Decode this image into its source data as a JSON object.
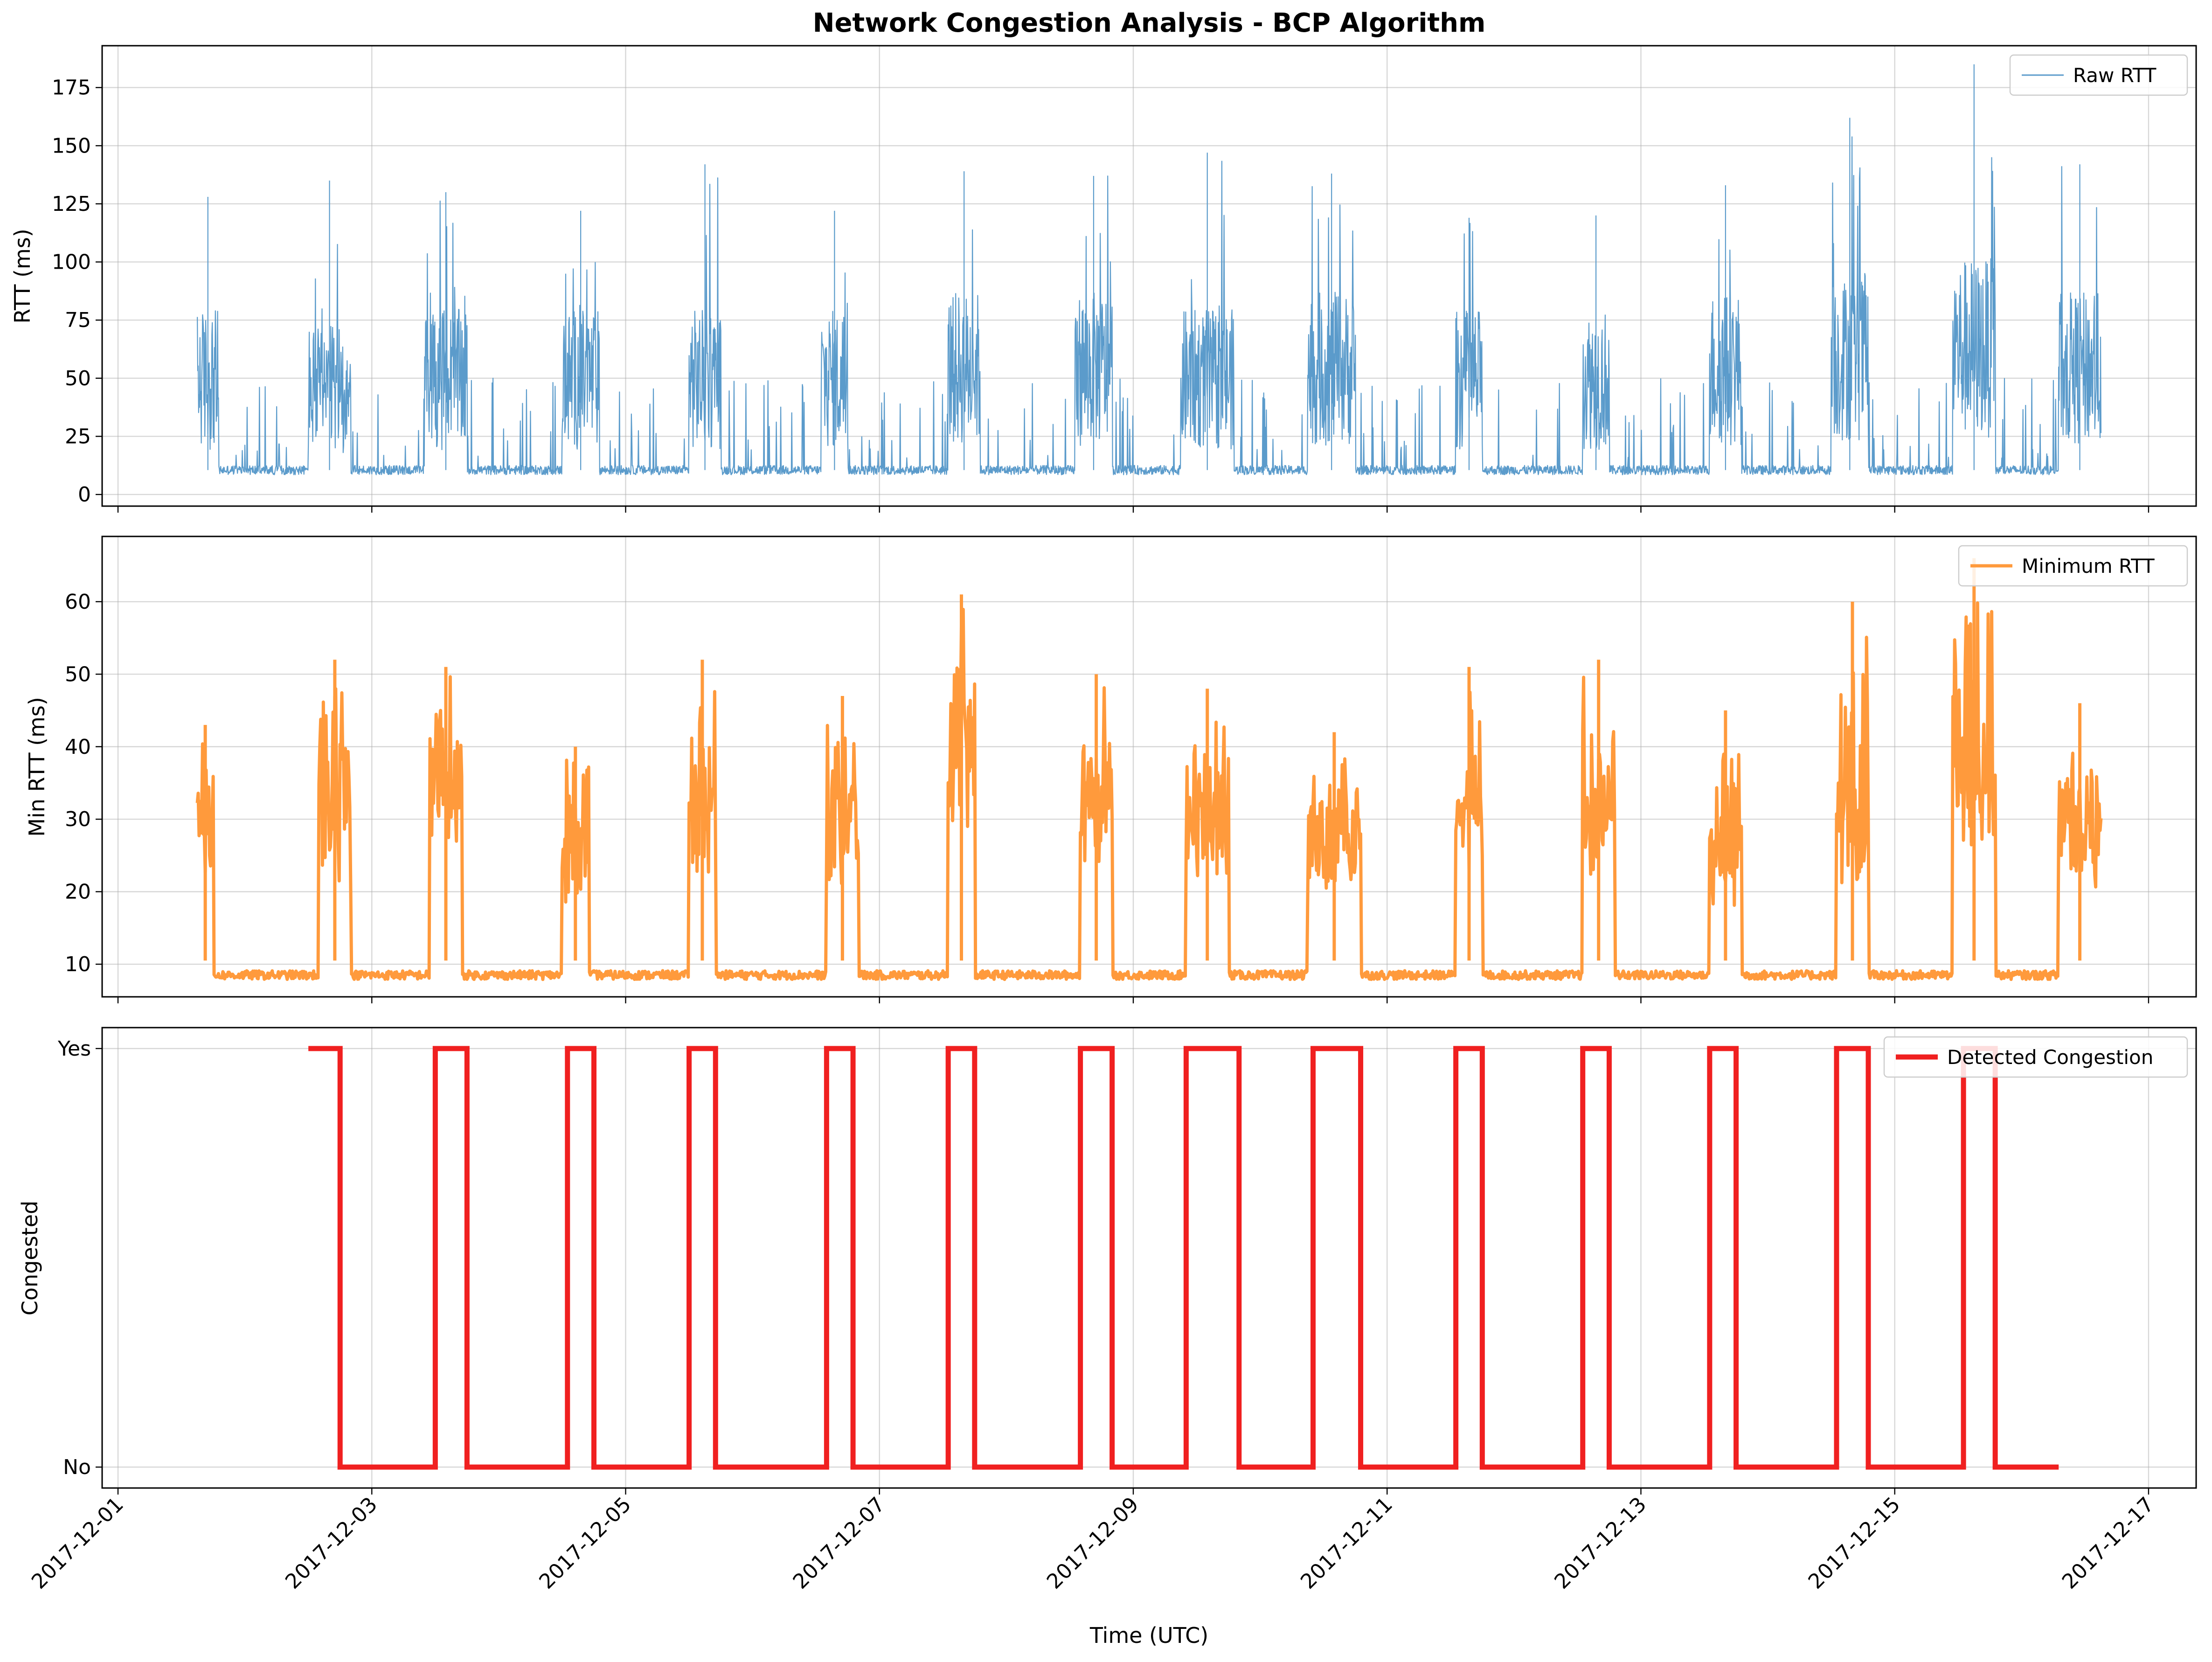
{
  "title": "Network Congestion Analysis - BCP Algorithm",
  "xlabel": "Time (UTC)",
  "x_ticks": [
    "2017-12-01",
    "2017-12-03",
    "2017-12-05",
    "2017-12-07",
    "2017-12-09",
    "2017-12-11",
    "2017-12-13",
    "2017-12-15",
    "2017-12-17"
  ],
  "colors": {
    "raw": "#5b9bcb",
    "min": "#ff9a3c",
    "cong": "#f02020"
  },
  "chart_data": [
    {
      "type": "line",
      "ylabel": "RTT (ms)",
      "legend": "Raw RTT",
      "legend_placement": "top-right",
      "grid": true,
      "x_range": [
        "2017-11-30T21:00",
        "2017-12-17T09:00"
      ],
      "ylim": [
        -5,
        193
      ],
      "y_ticks": [
        0,
        25,
        50,
        75,
        100,
        125,
        150,
        175
      ],
      "baseline_ms": 8.5,
      "peaks": [
        {
          "day": "2017-12-01",
          "start": "2017-12-01T15:00",
          "end": "2017-12-01T19:00",
          "level": 55,
          "max": 128
        },
        {
          "day": "2017-12-02",
          "start": "2017-12-02T12:00",
          "end": "2017-12-02T20:00",
          "level": 50,
          "max": 135
        },
        {
          "day": "2017-12-03",
          "start": "2017-12-03T10:00",
          "end": "2017-12-03T18:00",
          "level": 55,
          "max": 130
        },
        {
          "day": "2017-12-04",
          "start": "2017-12-04T12:00",
          "end": "2017-12-04T19:00",
          "level": 55,
          "max": 122
        },
        {
          "day": "2017-12-05",
          "start": "2017-12-05T12:00",
          "end": "2017-12-05T18:00",
          "level": 55,
          "max": 142
        },
        {
          "day": "2017-12-06",
          "start": "2017-12-06T13:00",
          "end": "2017-12-06T18:00",
          "level": 55,
          "max": 122
        },
        {
          "day": "2017-12-07",
          "start": "2017-12-07T13:00",
          "end": "2017-12-07T19:00",
          "level": 60,
          "max": 139
        },
        {
          "day": "2017-12-08",
          "start": "2017-12-08T13:00",
          "end": "2017-12-08T20:00",
          "level": 60,
          "max": 137
        },
        {
          "day": "2017-12-09",
          "start": "2017-12-09T09:00",
          "end": "2017-12-09T19:00",
          "level": 55,
          "max": 147
        },
        {
          "day": "2017-12-10",
          "start": "2017-12-10T09:00",
          "end": "2017-12-10T18:00",
          "level": 60,
          "max": 138
        },
        {
          "day": "2017-12-11",
          "start": "2017-12-11T13:00",
          "end": "2017-12-11T18:00",
          "level": 55,
          "max": 119
        },
        {
          "day": "2017-12-12",
          "start": "2017-12-12T13:00",
          "end": "2017-12-12T18:00",
          "level": 55,
          "max": 120
        },
        {
          "day": "2017-12-13",
          "start": "2017-12-13T13:00",
          "end": "2017-12-13T19:00",
          "level": 60,
          "max": 133
        },
        {
          "day": "2017-12-14",
          "start": "2017-12-14T12:00",
          "end": "2017-12-14T19:00",
          "level": 65,
          "max": 162
        },
        {
          "day": "2017-12-15",
          "start": "2017-12-15T11:00",
          "end": "2017-12-15T19:00",
          "level": 70,
          "max": 185
        },
        {
          "day": "2017-12-16",
          "start": "2017-12-16T07:00",
          "end": "2017-12-16T15:00",
          "level": 60,
          "max": 142
        }
      ],
      "data_start": "2017-12-01T15:00",
      "data_end": "2017-12-16T15:00"
    },
    {
      "type": "line",
      "ylabel": "Min RTT (ms)",
      "legend": "Minimum RTT",
      "legend_placement": "top-right",
      "grid": true,
      "x_range": [
        "2017-11-30T21:00",
        "2017-12-17T09:00"
      ],
      "ylim": [
        5.5,
        69
      ],
      "y_ticks": [
        10,
        20,
        30,
        40,
        50,
        60
      ],
      "baseline_ms": 8.5,
      "peaks": [
        {
          "day": "2017-12-01",
          "start": "2017-12-01T15:00",
          "end": "2017-12-01T18:00",
          "level": 28,
          "max": 43
        },
        {
          "day": "2017-12-02",
          "start": "2017-12-02T14:00",
          "end": "2017-12-02T20:00",
          "level": 30,
          "max": 52
        },
        {
          "day": "2017-12-03",
          "start": "2017-12-03T11:00",
          "end": "2017-12-03T17:00",
          "level": 36,
          "max": 51
        },
        {
          "day": "2017-12-04",
          "start": "2017-12-04T12:00",
          "end": "2017-12-04T17:00",
          "level": 28,
          "max": 40
        },
        {
          "day": "2017-12-05",
          "start": "2017-12-05T12:00",
          "end": "2017-12-05T17:00",
          "level": 32,
          "max": 52
        },
        {
          "day": "2017-12-06",
          "start": "2017-12-06T14:00",
          "end": "2017-12-06T20:00",
          "level": 30,
          "max": 47
        },
        {
          "day": "2017-12-07",
          "start": "2017-12-07T13:00",
          "end": "2017-12-07T18:00",
          "level": 38,
          "max": 61
        },
        {
          "day": "2017-12-08",
          "start": "2017-12-08T14:00",
          "end": "2017-12-08T20:00",
          "level": 34,
          "max": 50
        },
        {
          "day": "2017-12-09",
          "start": "2017-12-09T10:00",
          "end": "2017-12-09T18:00",
          "level": 30,
          "max": 48
        },
        {
          "day": "2017-12-10",
          "start": "2017-12-10T09:00",
          "end": "2017-12-10T19:00",
          "level": 30,
          "max": 42
        },
        {
          "day": "2017-12-11",
          "start": "2017-12-11T13:00",
          "end": "2017-12-11T18:00",
          "level": 32,
          "max": 51
        },
        {
          "day": "2017-12-12",
          "start": "2017-12-12T13:00",
          "end": "2017-12-12T19:00",
          "level": 32,
          "max": 52
        },
        {
          "day": "2017-12-13",
          "start": "2017-12-13T13:00",
          "end": "2017-12-13T19:00",
          "level": 28,
          "max": 45
        },
        {
          "day": "2017-12-14",
          "start": "2017-12-14T13:00",
          "end": "2017-12-14T19:00",
          "level": 30,
          "max": 60
        },
        {
          "day": "2017-12-15",
          "start": "2017-12-15T11:00",
          "end": "2017-12-15T19:00",
          "level": 36,
          "max": 66
        },
        {
          "day": "2017-12-16",
          "start": "2017-12-16T07:00",
          "end": "2017-12-16T15:00",
          "level": 30,
          "max": 46
        }
      ],
      "data_start": "2017-12-01T15:00",
      "data_end": "2017-12-16T15:00"
    },
    {
      "type": "line",
      "ylabel": "Congested",
      "legend": "Detected Congestion",
      "legend_placement": "top-right",
      "grid": true,
      "x_range": [
        "2017-11-30T21:00",
        "2017-12-17T09:00"
      ],
      "ylim": [
        -0.05,
        1.05
      ],
      "y_ticks": [
        0,
        1
      ],
      "y_tick_labels": [
        "No",
        "Yes"
      ],
      "steps": [
        {
          "x": "2017-12-02T12:00",
          "y": 1
        },
        {
          "x": "2017-12-02T18:00",
          "y": 0
        },
        {
          "x": "2017-12-03T12:00",
          "y": 1
        },
        {
          "x": "2017-12-03T18:00",
          "y": 0
        },
        {
          "x": "2017-12-04T13:00",
          "y": 1
        },
        {
          "x": "2017-12-04T18:00",
          "y": 0
        },
        {
          "x": "2017-12-05T12:00",
          "y": 1
        },
        {
          "x": "2017-12-05T17:00",
          "y": 0
        },
        {
          "x": "2017-12-06T14:00",
          "y": 1
        },
        {
          "x": "2017-12-06T19:00",
          "y": 0
        },
        {
          "x": "2017-12-07T13:00",
          "y": 1
        },
        {
          "x": "2017-12-07T18:00",
          "y": 0
        },
        {
          "x": "2017-12-08T14:00",
          "y": 1
        },
        {
          "x": "2017-12-08T20:00",
          "y": 0
        },
        {
          "x": "2017-12-09T10:00",
          "y": 1
        },
        {
          "x": "2017-12-09T20:00",
          "y": 0
        },
        {
          "x": "2017-12-10T10:00",
          "y": 1
        },
        {
          "x": "2017-12-10T19:00",
          "y": 0
        },
        {
          "x": "2017-12-11T13:00",
          "y": 1
        },
        {
          "x": "2017-12-11T18:00",
          "y": 0
        },
        {
          "x": "2017-12-12T13:00",
          "y": 1
        },
        {
          "x": "2017-12-12T18:00",
          "y": 0
        },
        {
          "x": "2017-12-13T13:00",
          "y": 1
        },
        {
          "x": "2017-12-13T18:00",
          "y": 0
        },
        {
          "x": "2017-12-14T13:00",
          "y": 1
        },
        {
          "x": "2017-12-14T19:00",
          "y": 0
        },
        {
          "x": "2017-12-15T13:00",
          "y": 1
        },
        {
          "x": "2017-12-15T19:00",
          "y": 0
        },
        {
          "x": "2017-12-16T07:00",
          "y": 0
        }
      ]
    }
  ]
}
